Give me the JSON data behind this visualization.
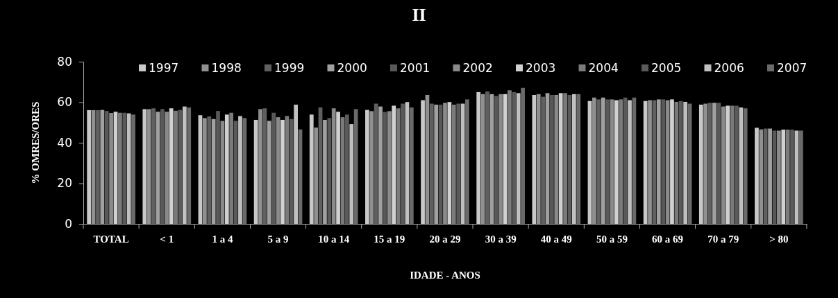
{
  "chart_data": {
    "type": "bar",
    "title": "II",
    "xlabel": "IDADE - ANOS",
    "ylabel": "% OMRES/ORES",
    "categories": [
      "TOTAL",
      "< 1",
      "1 a 4",
      "5 a 9",
      "10 a 14",
      "15 a 19",
      "20 a 29",
      "30 a 39",
      "40 a 49",
      "50 a 59",
      "60 a 69",
      "70 a 79",
      "> 80"
    ],
    "ylim": [
      0,
      80
    ],
    "yticks": [
      0,
      20,
      40,
      60,
      80
    ],
    "grid": false,
    "legend": "top",
    "series": [
      {
        "name": "1997",
        "color": "#c8c8c8",
        "values": [
          56.1,
          56.6,
          53.6,
          51.3,
          53.9,
          56.2,
          61.0,
          65.0,
          63.6,
          60.6,
          60.6,
          58.8,
          47.4
        ]
      },
      {
        "name": "1998",
        "color": "#909090",
        "values": [
          56.1,
          56.6,
          52.2,
          56.6,
          47.5,
          55.6,
          63.6,
          64.0,
          64.0,
          62.3,
          61.0,
          59.3,
          46.6
        ]
      },
      {
        "name": "1999",
        "color": "#606060",
        "values": [
          56.1,
          57.0,
          53.0,
          57.0,
          57.4,
          59.3,
          59.3,
          65.3,
          62.7,
          61.4,
          61.0,
          59.7,
          47.0
        ]
      },
      {
        "name": "2000",
        "color": "#a0a0a0",
        "values": [
          56.2,
          55.3,
          51.7,
          50.8,
          51.3,
          57.9,
          58.8,
          64.0,
          64.5,
          62.3,
          61.4,
          59.7,
          47.0
        ]
      },
      {
        "name": "2001",
        "color": "#585858",
        "values": [
          55.7,
          56.6,
          55.7,
          54.8,
          52.2,
          55.2,
          58.8,
          63.1,
          63.6,
          61.4,
          61.4,
          59.7,
          46.0
        ]
      },
      {
        "name": "2002",
        "color": "#8a8a8a",
        "values": [
          54.7,
          55.3,
          50.8,
          52.6,
          57.0,
          55.6,
          59.7,
          64.0,
          63.6,
          61.4,
          61.0,
          57.9,
          46.0
        ]
      },
      {
        "name": "2003",
        "color": "#d0d0d0",
        "values": [
          55.3,
          57.0,
          53.9,
          51.3,
          55.3,
          58.3,
          60.1,
          64.0,
          64.5,
          61.0,
          61.4,
          58.3,
          46.5
        ]
      },
      {
        "name": "2004",
        "color": "#7a7a7a",
        "values": [
          54.8,
          55.8,
          54.8,
          53.2,
          52.6,
          57.0,
          58.8,
          65.9,
          64.5,
          61.4,
          60.2,
          58.3,
          46.5
        ]
      },
      {
        "name": "2005",
        "color": "#5a5a5a",
        "values": [
          54.8,
          56.2,
          50.8,
          51.7,
          53.9,
          59.3,
          59.3,
          65.0,
          63.6,
          62.3,
          60.6,
          58.3,
          46.5
        ]
      },
      {
        "name": "2006",
        "color": "#c0c0c0",
        "values": [
          54.5,
          57.9,
          53.2,
          58.8,
          49.2,
          60.1,
          59.3,
          64.5,
          64.0,
          61.0,
          60.2,
          57.4,
          46.0
        ]
      },
      {
        "name": "2007",
        "color": "#6a6a6a",
        "values": [
          53.9,
          57.4,
          52.2,
          46.6,
          56.6,
          57.4,
          61.4,
          67.1,
          64.0,
          62.3,
          59.3,
          57.0,
          46.0
        ]
      }
    ]
  }
}
